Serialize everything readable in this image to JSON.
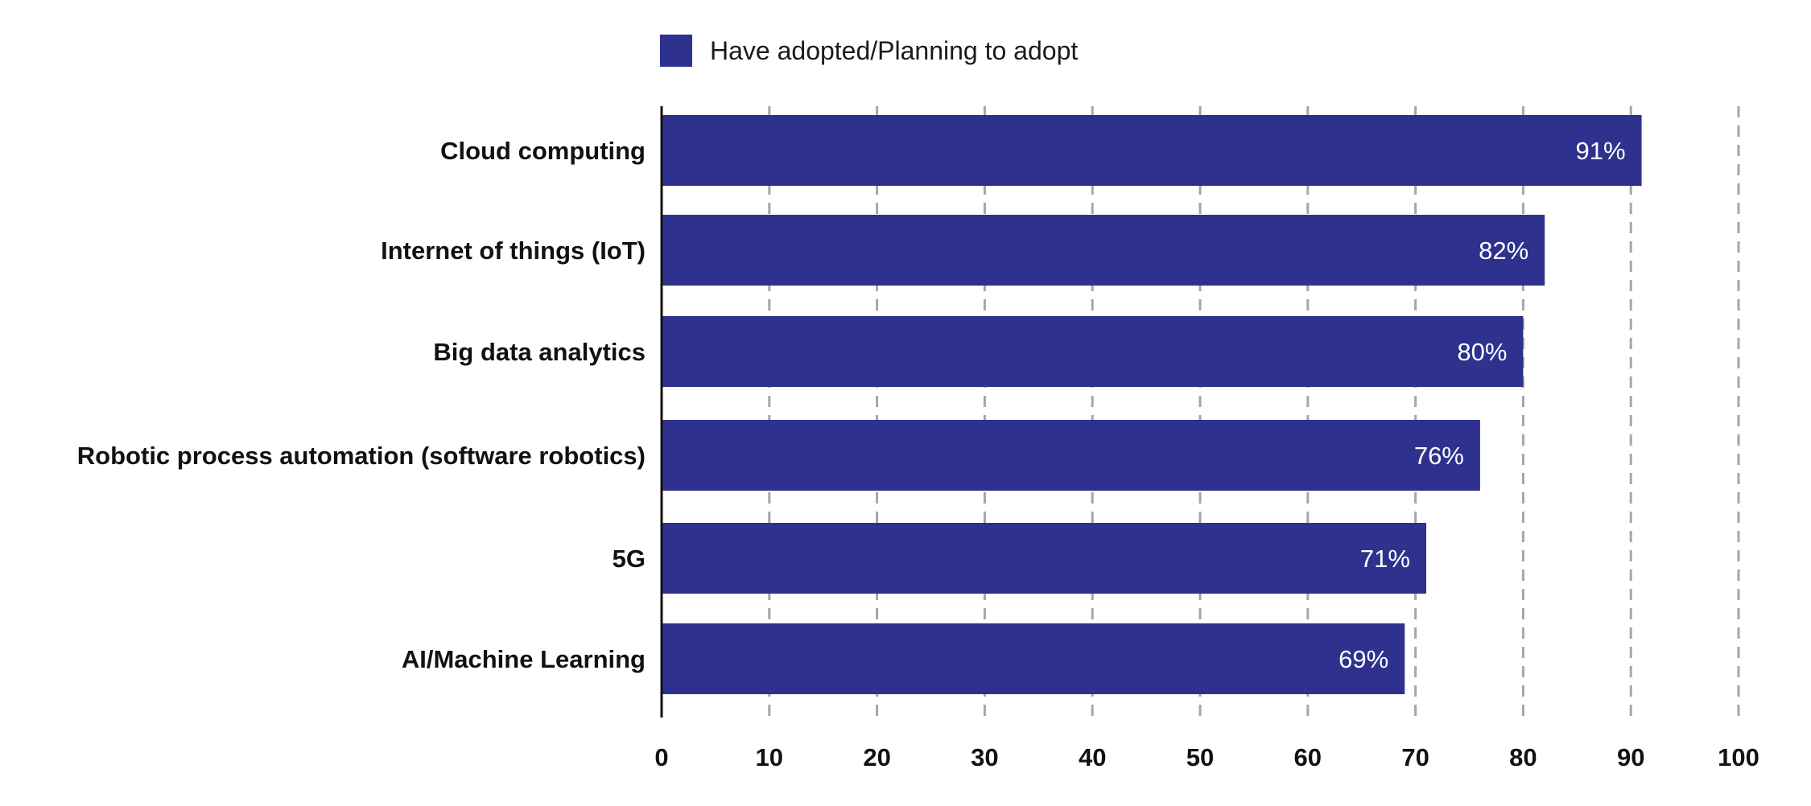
{
  "chart_data": {
    "type": "bar",
    "orientation": "horizontal",
    "categories": [
      "Cloud computing",
      "Internet of things (IoT)",
      "Big data analytics",
      "Robotic process automation (software robotics)",
      "5G",
      "AI/Machine Learning"
    ],
    "series": [
      {
        "name": "Have adopted/Planning to adopt",
        "values": [
          91,
          82,
          80,
          76,
          71,
          69
        ],
        "value_labels": [
          "91%",
          "82%",
          "80%",
          "76%",
          "71%",
          "69%"
        ],
        "color": "#2e318d"
      }
    ],
    "xlim": [
      0,
      100
    ],
    "x_ticks": [
      "0",
      "10",
      "20",
      "30",
      "40",
      "50",
      "60",
      "70",
      "80",
      "90",
      "100"
    ],
    "grid": "vertical dashed",
    "grid_color": "#a6a6a6",
    "legend_position": "top",
    "title": "",
    "xlabel": "",
    "ylabel": ""
  }
}
